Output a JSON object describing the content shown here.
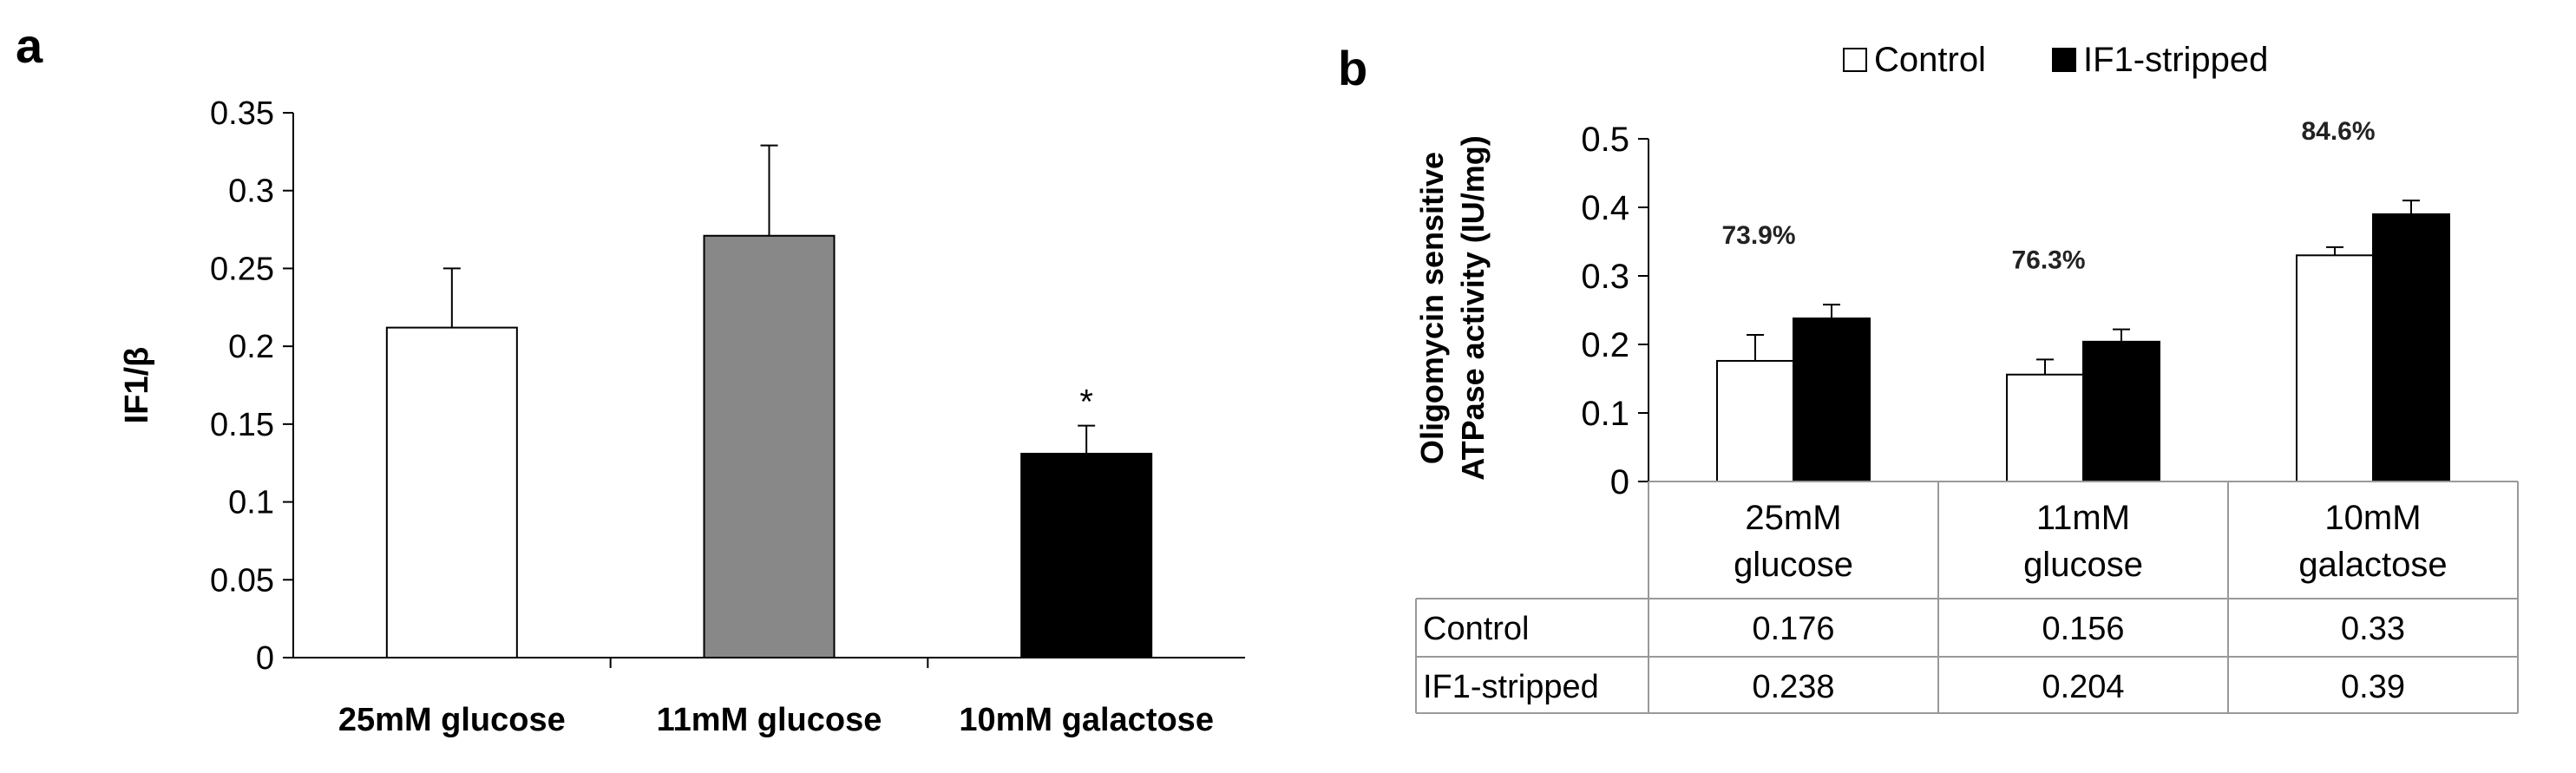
{
  "chart_data": [
    {
      "panel_label": "a",
      "type": "bar",
      "title": "",
      "xlabel": "",
      "ylabel": "IF1/β",
      "ylim": [
        0,
        0.35
      ],
      "yticks": [
        "0",
        "0.05",
        "0.1",
        "0.15",
        "0.2",
        "0.25",
        "0.3",
        "0.35"
      ],
      "categories": [
        "25mM glucose",
        "11mM glucose",
        "10mM galactose"
      ],
      "values": [
        0.212,
        0.271,
        0.131
      ],
      "errors": [
        0.038,
        0.058,
        0.018
      ],
      "colors": [
        "#ffffff",
        "#888888",
        "#000000"
      ],
      "annotations": [
        "",
        "",
        "*"
      ],
      "grid": false
    },
    {
      "panel_label": "b",
      "type": "bar",
      "title": "",
      "xlabel": "",
      "ylabel_line1": "Oligomycin sensitive",
      "ylabel_line2": "ATPase activity (IU/mg)",
      "ylim": [
        0,
        0.5
      ],
      "yticks": [
        "0",
        "0.1",
        "0.2",
        "0.3",
        "0.4",
        "0.5"
      ],
      "categories": [
        {
          "line1": "25mM",
          "line2": "glucose"
        },
        {
          "line1": "11mM",
          "line2": "glucose"
        },
        {
          "line1": "10mM",
          "line2": "galactose"
        }
      ],
      "series": [
        {
          "name": "Control",
          "color": "#ffffff",
          "values": [
            0.176,
            0.156,
            0.33
          ],
          "errors": [
            0.038,
            0.022,
            0.012
          ],
          "table_values": [
            "0.176",
            "0.156",
            "0.33"
          ]
        },
        {
          "name": "IF1-stripped",
          "color": "#000000",
          "values": [
            0.238,
            0.204,
            0.39
          ],
          "errors": [
            0.02,
            0.018,
            0.02
          ],
          "table_values": [
            "0.238",
            "0.204",
            "0.39"
          ]
        }
      ],
      "annotations": [
        "73.9%",
        "76.3%",
        "84.6%"
      ],
      "legend": "top",
      "grid": false
    }
  ]
}
